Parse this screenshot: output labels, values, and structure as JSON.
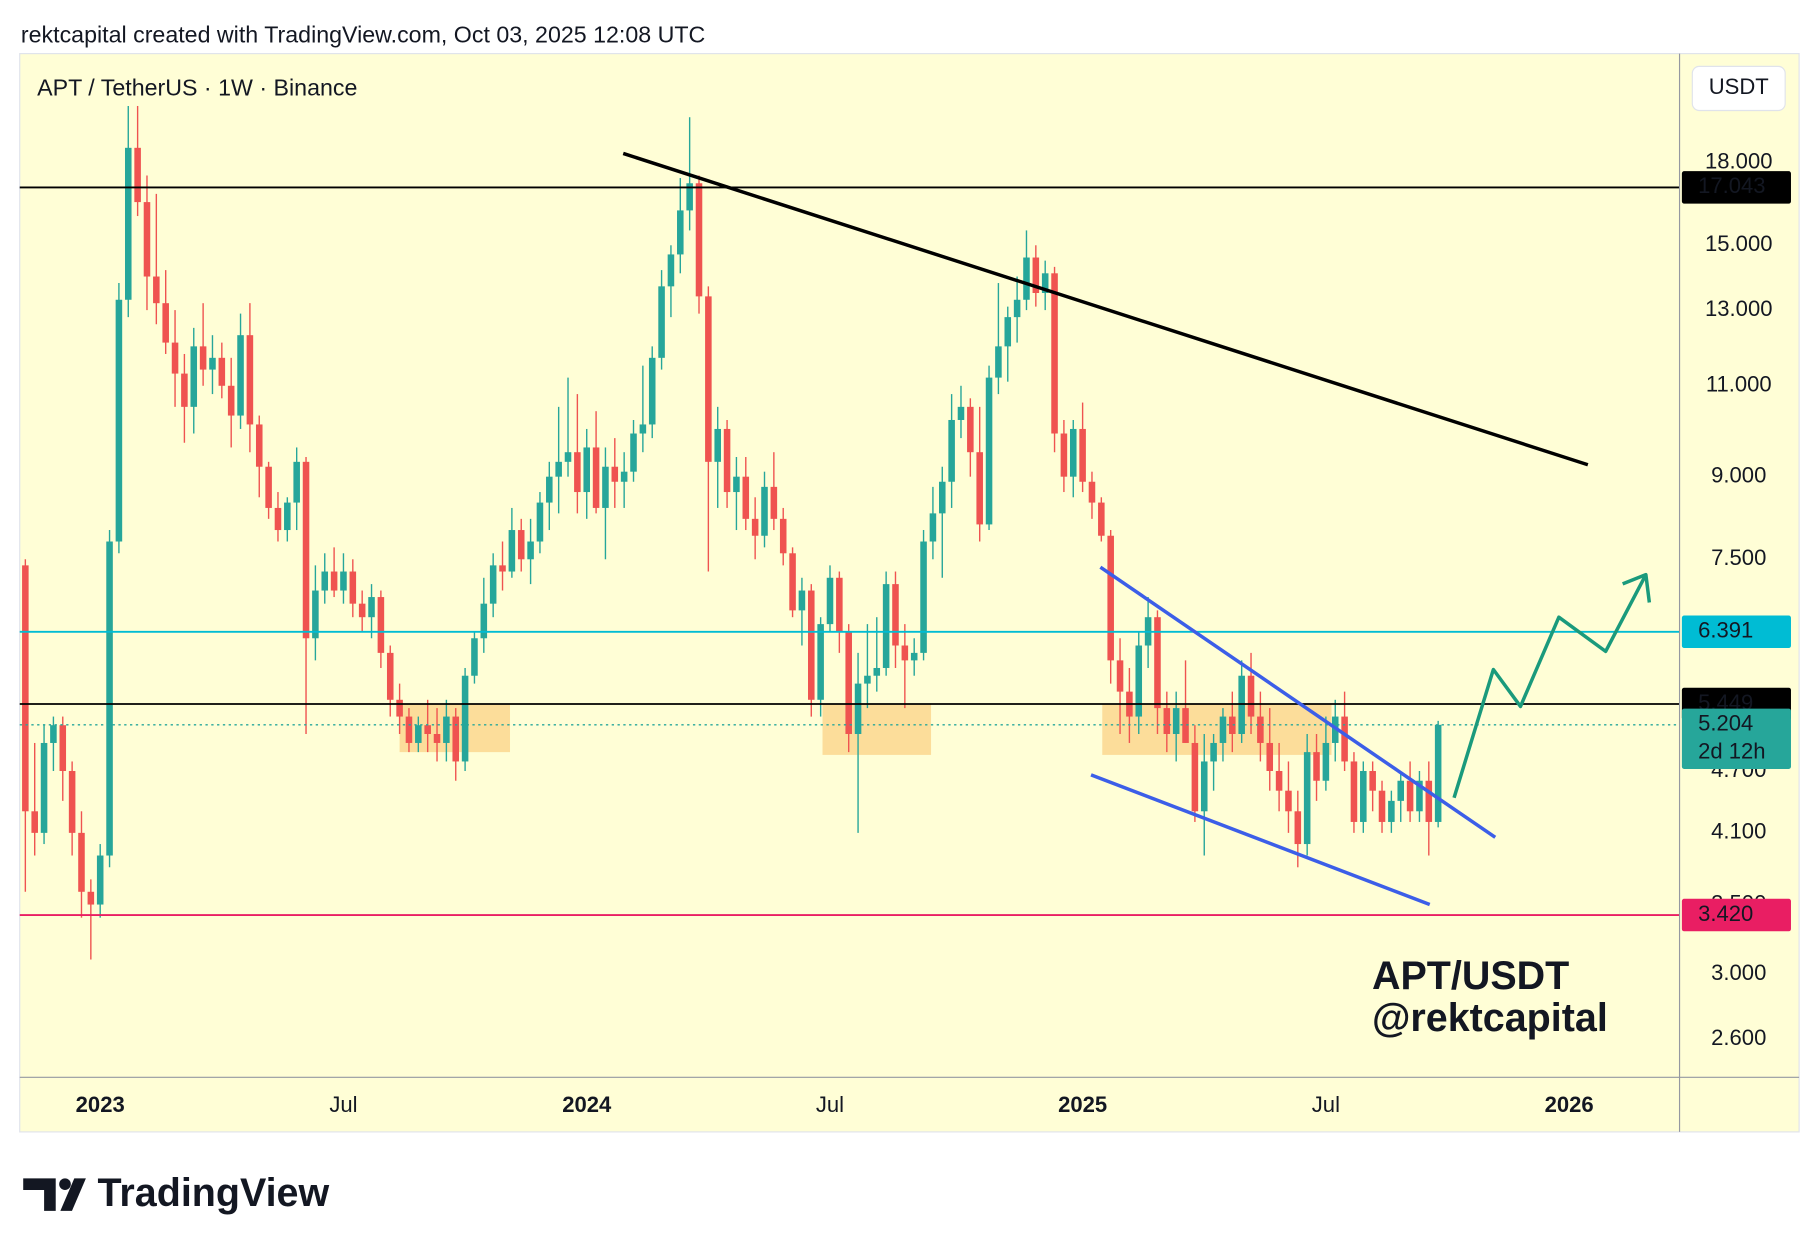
{
  "header": {
    "text": "rektcapital created with TradingView.com, Oct 03, 2025 12:08 UTC"
  },
  "footer": {
    "brand": "TradingView"
  },
  "chart_data": {
    "type": "candlestick",
    "title": "APT / TetherUS · 1W · Binance",
    "currency": "USDT",
    "watermark": [
      "APT/USDT",
      "@rektcapital"
    ],
    "log_scale": true,
    "up_color": "#26a69a",
    "down_color": "#ef5350",
    "xlim": [
      -0.6,
      176.8
    ],
    "ylim": [
      2.39,
      22.9
    ],
    "xticks": [
      {
        "value": 8,
        "label": "2023"
      },
      {
        "value": 34,
        "label": "Jul"
      },
      {
        "value": 60,
        "label": "2024"
      },
      {
        "value": 86,
        "label": "Jul"
      },
      {
        "value": 113,
        "label": "2025"
      },
      {
        "value": 139,
        "label": "Jul"
      },
      {
        "value": 165,
        "label": "2026"
      }
    ],
    "yticks": [
      {
        "value": 18,
        "label": "18.000"
      },
      {
        "value": 15,
        "label": "15.000"
      },
      {
        "value": 13,
        "label": "13.000"
      },
      {
        "value": 11,
        "label": "11.000"
      },
      {
        "value": 9,
        "label": "9.000"
      },
      {
        "value": 7.5,
        "label": "7.500"
      },
      {
        "value": 4.7,
        "label": "4.700"
      },
      {
        "value": 4.1,
        "label": "4.100"
      },
      {
        "value": 3.5,
        "label": "3.500"
      },
      {
        "value": 3,
        "label": "3.000"
      },
      {
        "value": 2.6,
        "label": "2.600"
      }
    ],
    "candles": [
      [
        7.4,
        7.5,
        3.6,
        4.3
      ],
      [
        4.3,
        5.0,
        3.9,
        4.1
      ],
      [
        4.1,
        5.2,
        4.0,
        5.0
      ],
      [
        5.0,
        5.3,
        4.7,
        5.2
      ],
      [
        5.2,
        5.3,
        4.4,
        4.7
      ],
      [
        4.7,
        4.8,
        3.9,
        4.1
      ],
      [
        4.1,
        4.3,
        3.4,
        3.6
      ],
      [
        3.6,
        3.7,
        3.1,
        3.5
      ],
      [
        3.5,
        4.0,
        3.4,
        3.9
      ],
      [
        3.9,
        8.0,
        3.8,
        7.8
      ],
      [
        7.8,
        13.8,
        7.6,
        13.3
      ],
      [
        13.3,
        20.4,
        12.8,
        18.6
      ],
      [
        18.6,
        20.4,
        16.0,
        16.5
      ],
      [
        16.5,
        17.5,
        13.0,
        14.0
      ],
      [
        14.0,
        16.8,
        12.6,
        13.2
      ],
      [
        13.2,
        14.2,
        11.8,
        12.1
      ],
      [
        12.1,
        13.0,
        10.5,
        11.3
      ],
      [
        11.3,
        11.8,
        9.7,
        10.5
      ],
      [
        10.5,
        12.5,
        9.9,
        12.0
      ],
      [
        12.0,
        13.2,
        11.0,
        11.4
      ],
      [
        11.4,
        12.3,
        10.8,
        11.7
      ],
      [
        11.7,
        12.1,
        10.7,
        11.0
      ],
      [
        11.0,
        11.7,
        9.6,
        10.3
      ],
      [
        10.3,
        12.9,
        10.0,
        12.3
      ],
      [
        12.3,
        13.2,
        9.5,
        10.1
      ],
      [
        10.1,
        10.3,
        8.6,
        9.2
      ],
      [
        9.2,
        9.3,
        8.2,
        8.4
      ],
      [
        8.4,
        8.7,
        7.8,
        8.0
      ],
      [
        8.0,
        8.6,
        7.8,
        8.5
      ],
      [
        8.5,
        9.6,
        8.0,
        9.3
      ],
      [
        9.3,
        9.4,
        5.1,
        6.3
      ],
      [
        6.3,
        7.4,
        6.0,
        7.0
      ],
      [
        7.0,
        7.6,
        6.8,
        7.3
      ],
      [
        7.3,
        7.7,
        6.9,
        7.0
      ],
      [
        7.0,
        7.6,
        6.8,
        7.3
      ],
      [
        7.3,
        7.5,
        6.6,
        6.8
      ],
      [
        6.8,
        7.0,
        6.4,
        6.6
      ],
      [
        6.6,
        7.1,
        6.3,
        6.9
      ],
      [
        6.9,
        7.0,
        5.9,
        6.1
      ],
      [
        6.1,
        6.2,
        5.3,
        5.5
      ],
      [
        5.5,
        5.7,
        5.1,
        5.3
      ],
      [
        5.3,
        5.4,
        4.9,
        5.0
      ],
      [
        5.0,
        5.3,
        4.9,
        5.2
      ],
      [
        5.2,
        5.5,
        4.9,
        5.1
      ],
      [
        5.1,
        5.4,
        4.8,
        5.0
      ],
      [
        5.0,
        5.5,
        4.8,
        5.3
      ],
      [
        5.3,
        5.4,
        4.6,
        4.8
      ],
      [
        4.8,
        5.9,
        4.7,
        5.8
      ],
      [
        5.8,
        6.4,
        5.7,
        6.3
      ],
      [
        6.3,
        7.2,
        6.1,
        6.8
      ],
      [
        6.8,
        7.6,
        6.6,
        7.4
      ],
      [
        7.4,
        7.8,
        7.0,
        7.3
      ],
      [
        7.3,
        8.4,
        7.2,
        8.0
      ],
      [
        8.0,
        8.2,
        7.3,
        7.5
      ],
      [
        7.5,
        8.2,
        7.1,
        7.8
      ],
      [
        7.8,
        8.7,
        7.6,
        8.5
      ],
      [
        8.5,
        9.3,
        8.0,
        9.0
      ],
      [
        9.0,
        10.5,
        8.3,
        9.3
      ],
      [
        9.3,
        11.2,
        9.0,
        9.5
      ],
      [
        9.5,
        10.8,
        8.3,
        8.7
      ],
      [
        8.7,
        10.0,
        8.2,
        9.6
      ],
      [
        9.6,
        10.4,
        8.3,
        8.4
      ],
      [
        8.4,
        9.6,
        7.5,
        9.2
      ],
      [
        9.2,
        9.8,
        8.4,
        8.9
      ],
      [
        8.9,
        9.5,
        8.4,
        9.1
      ],
      [
        9.1,
        10.2,
        8.9,
        9.9
      ],
      [
        9.9,
        11.5,
        9.5,
        10.1
      ],
      [
        10.1,
        12.0,
        9.8,
        11.7
      ],
      [
        11.7,
        14.2,
        11.4,
        13.7
      ],
      [
        13.7,
        15.0,
        12.8,
        14.7
      ],
      [
        14.7,
        17.4,
        14.1,
        16.2
      ],
      [
        16.2,
        19.9,
        15.5,
        17.2
      ],
      [
        17.2,
        17.5,
        12.9,
        13.4
      ],
      [
        13.4,
        13.7,
        7.3,
        9.3
      ],
      [
        9.3,
        10.5,
        8.4,
        10.0
      ],
      [
        10.0,
        10.2,
        8.4,
        8.7
      ],
      [
        8.7,
        9.4,
        8.0,
        9.0
      ],
      [
        9.0,
        9.4,
        8.0,
        8.2
      ],
      [
        8.2,
        8.6,
        7.5,
        7.9
      ],
      [
        7.9,
        9.1,
        7.7,
        8.8
      ],
      [
        8.8,
        9.5,
        8.0,
        8.2
      ],
      [
        8.2,
        8.4,
        7.4,
        7.6
      ],
      [
        7.6,
        7.7,
        6.6,
        6.7
      ],
      [
        6.7,
        7.2,
        6.2,
        7.0
      ],
      [
        7.0,
        7.1,
        5.3,
        5.5
      ],
      [
        5.5,
        6.6,
        5.3,
        6.5
      ],
      [
        6.5,
        7.4,
        6.4,
        7.2
      ],
      [
        7.2,
        7.3,
        6.1,
        6.4
      ],
      [
        6.4,
        6.5,
        4.9,
        5.1
      ],
      [
        5.1,
        6.1,
        4.1,
        5.7
      ],
      [
        5.7,
        6.5,
        5.4,
        5.8
      ],
      [
        5.8,
        6.6,
        5.6,
        5.9
      ],
      [
        5.9,
        7.3,
        5.8,
        7.1
      ],
      [
        7.1,
        7.3,
        5.9,
        6.2
      ],
      [
        6.2,
        6.5,
        5.4,
        6.0
      ],
      [
        6.0,
        6.3,
        5.8,
        6.1
      ],
      [
        6.1,
        8.0,
        6.0,
        7.8
      ],
      [
        7.8,
        8.8,
        7.5,
        8.3
      ],
      [
        8.3,
        9.2,
        7.2,
        8.9
      ],
      [
        8.9,
        10.8,
        8.4,
        10.2
      ],
      [
        10.2,
        11.0,
        9.8,
        10.5
      ],
      [
        10.5,
        10.7,
        9.0,
        9.5
      ],
      [
        9.5,
        10.5,
        7.8,
        8.1
      ],
      [
        8.1,
        11.5,
        8.0,
        11.2
      ],
      [
        11.2,
        13.8,
        10.8,
        12.0
      ],
      [
        12.0,
        13.1,
        11.1,
        12.8
      ],
      [
        12.8,
        14.0,
        12.1,
        13.3
      ],
      [
        13.3,
        15.5,
        13.0,
        14.6
      ],
      [
        14.6,
        15.0,
        13.1,
        13.5
      ],
      [
        13.5,
        14.5,
        13.0,
        14.1
      ],
      [
        14.1,
        14.3,
        9.5,
        9.9
      ],
      [
        9.9,
        10.2,
        8.7,
        9.0
      ],
      [
        9.0,
        10.2,
        8.6,
        10.0
      ],
      [
        10.0,
        10.6,
        8.7,
        8.9
      ],
      [
        8.9,
        9.1,
        8.2,
        8.5
      ],
      [
        8.5,
        8.6,
        7.8,
        7.9
      ],
      [
        7.9,
        8.0,
        5.7,
        6.0
      ],
      [
        6.0,
        6.3,
        5.1,
        5.6
      ],
      [
        5.6,
        5.9,
        5.0,
        5.3
      ],
      [
        5.3,
        6.4,
        5.1,
        6.2
      ],
      [
        6.2,
        6.9,
        5.9,
        6.6
      ],
      [
        6.6,
        6.7,
        5.1,
        5.4
      ],
      [
        5.4,
        5.6,
        4.9,
        5.1
      ],
      [
        5.1,
        5.6,
        4.8,
        5.4
      ],
      [
        5.4,
        6.0,
        5.0,
        5.0
      ],
      [
        5.0,
        5.2,
        4.2,
        4.3
      ],
      [
        4.3,
        5.1,
        3.9,
        4.8
      ],
      [
        4.8,
        5.1,
        4.5,
        5.0
      ],
      [
        5.0,
        5.4,
        4.8,
        5.3
      ],
      [
        5.3,
        5.6,
        4.9,
        5.1
      ],
      [
        5.1,
        6.0,
        5.0,
        5.8
      ],
      [
        5.8,
        6.1,
        5.1,
        5.3
      ],
      [
        5.3,
        5.6,
        4.8,
        5.0
      ],
      [
        5.0,
        5.4,
        4.5,
        4.7
      ],
      [
        4.7,
        5.0,
        4.3,
        4.5
      ],
      [
        4.5,
        4.8,
        4.1,
        4.3
      ],
      [
        4.3,
        4.5,
        3.8,
        4.0
      ],
      [
        4.0,
        5.1,
        3.9,
        4.9
      ],
      [
        4.9,
        5.1,
        4.4,
        4.6
      ],
      [
        4.6,
        5.3,
        4.5,
        5.0
      ],
      [
        5.0,
        5.5,
        4.8,
        5.3
      ],
      [
        5.3,
        5.6,
        4.7,
        4.8
      ],
      [
        4.8,
        4.9,
        4.1,
        4.2
      ],
      [
        4.2,
        4.8,
        4.1,
        4.7
      ],
      [
        4.7,
        4.8,
        4.3,
        4.5
      ],
      [
        4.5,
        4.6,
        4.1,
        4.2
      ],
      [
        4.2,
        4.5,
        4.1,
        4.4
      ],
      [
        4.4,
        4.7,
        4.2,
        4.6
      ],
      [
        4.6,
        4.8,
        4.2,
        4.3
      ],
      [
        4.3,
        4.7,
        4.2,
        4.6
      ],
      [
        4.6,
        4.8,
        3.9,
        4.2
      ],
      [
        4.2,
        5.25,
        4.15,
        5.204
      ]
    ],
    "price_lines": [
      {
        "value": 17.043,
        "color": "#000000",
        "label_color": "#ffffff"
      },
      {
        "value": 6.391,
        "color": "#00bcd4",
        "label_color": "#131722"
      },
      {
        "value": 5.449,
        "color": "#000000",
        "label_color": "#ffffff"
      },
      {
        "value": 5.204,
        "color": "#26a69a",
        "label_color": "#ffffff",
        "style": "dotted",
        "countdown": "2d 12h"
      },
      {
        "value": 3.42,
        "label": "3.420",
        "color": "#e91e63",
        "label_color": "#ffffff"
      }
    ],
    "zones": [
      {
        "x": [
          40,
          51.8
        ],
        "y": [
          4.9,
          5.45
        ]
      },
      {
        "x": [
          85.2,
          96.8
        ],
        "y": [
          4.87,
          5.45
        ]
      },
      {
        "x": [
          115.1,
          139.6
        ],
        "y": [
          4.87,
          5.45
        ]
      }
    ],
    "zone_color": "#fcd78f",
    "trendlines": [
      {
        "x": [
          63.9,
          167.0
        ],
        "y": [
          18.37,
          9.24
        ],
        "color": "#000000"
      },
      {
        "x": [
          114.9,
          157.1
        ],
        "y": [
          7.37,
          4.06
        ],
        "color": "#3c5ee8"
      },
      {
        "x": [
          113.9,
          150.1
        ],
        "y": [
          4.66,
          3.5
        ],
        "color": "#3c5ee8"
      }
    ],
    "projection": {
      "x": [
        152.7,
        156.9,
        159.8,
        163.9,
        168.9,
        173.2
      ],
      "y": [
        4.43,
        5.88,
        5.42,
        6.6,
        6.12,
        7.25
      ],
      "color": "#1a9a7c"
    }
  }
}
